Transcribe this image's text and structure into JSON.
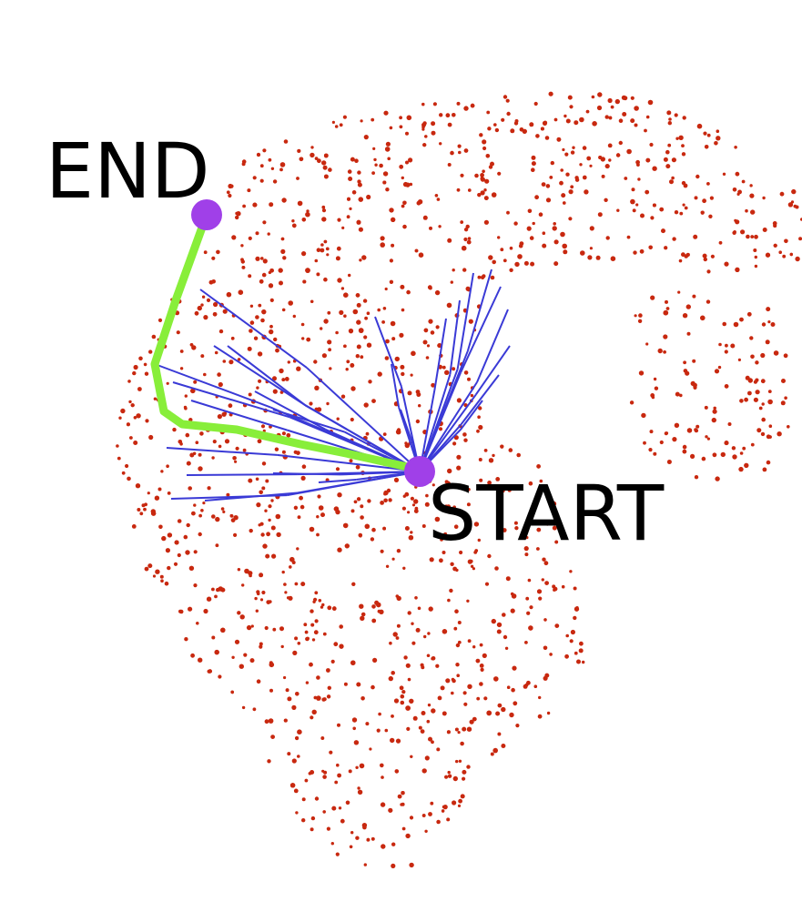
{
  "labels": {
    "end": "END",
    "start": "START"
  },
  "colors": {
    "background": "#ffffff",
    "point_cloud": "#c8280f",
    "search_tree": "#3a3ad6",
    "path": "#88ee3a",
    "endpoint_marker": "#a040e8",
    "label_text": "#000000"
  }
}
